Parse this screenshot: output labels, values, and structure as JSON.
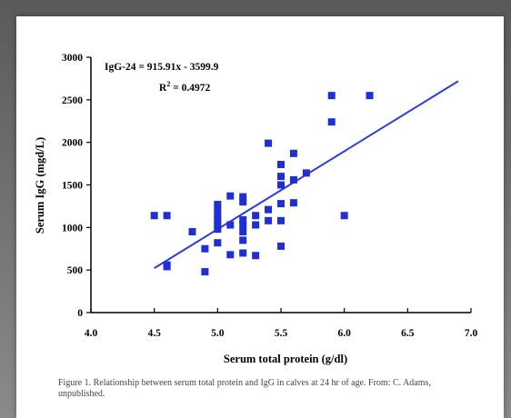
{
  "chart_data": {
    "type": "scatter",
    "xlabel": "Serum total protein (g/dl)",
    "ylabel": "Serum IgG (mgd/L)",
    "xlim": [
      4.0,
      7.0
    ],
    "ylim": [
      0,
      3000
    ],
    "xticks": [
      "4.0",
      "4.5",
      "5.0",
      "5.5",
      "6.0",
      "6.5",
      "7.0"
    ],
    "yticks": [
      "0",
      "500",
      "1000",
      "1500",
      "2000",
      "2500",
      "3000"
    ],
    "xtick_values": [
      4.0,
      4.5,
      5.0,
      5.5,
      6.0,
      6.5,
      7.0
    ],
    "ytick_values": [
      0,
      500,
      1000,
      1500,
      2000,
      2500,
      3000
    ],
    "grid": false,
    "series": [
      {
        "marker_color": "#1f2ed6",
        "points": [
          [
            4.5,
            1140
          ],
          [
            4.6,
            1140
          ],
          [
            4.6,
            540
          ],
          [
            4.6,
            560
          ],
          [
            4.8,
            950
          ],
          [
            4.9,
            480
          ],
          [
            4.9,
            750
          ],
          [
            5.0,
            820
          ],
          [
            5.0,
            980
          ],
          [
            5.0,
            1030
          ],
          [
            5.0,
            1090
          ],
          [
            5.0,
            1140
          ],
          [
            5.0,
            1210
          ],
          [
            5.0,
            1270
          ],
          [
            5.1,
            1030
          ],
          [
            5.1,
            680
          ],
          [
            5.1,
            1370
          ],
          [
            5.2,
            700
          ],
          [
            5.2,
            850
          ],
          [
            5.2,
            950
          ],
          [
            5.2,
            1030
          ],
          [
            5.2,
            1090
          ],
          [
            5.2,
            1300
          ],
          [
            5.2,
            1360
          ],
          [
            5.3,
            670
          ],
          [
            5.3,
            1030
          ],
          [
            5.3,
            1140
          ],
          [
            5.4,
            1080
          ],
          [
            5.4,
            1210
          ],
          [
            5.4,
            1990
          ],
          [
            5.5,
            780
          ],
          [
            5.5,
            1080
          ],
          [
            5.5,
            1280
          ],
          [
            5.5,
            1500
          ],
          [
            5.5,
            1600
          ],
          [
            5.5,
            1740
          ],
          [
            5.6,
            1290
          ],
          [
            5.6,
            1560
          ],
          [
            5.6,
            1870
          ],
          [
            5.7,
            1640
          ],
          [
            5.9,
            2240
          ],
          [
            5.9,
            2550
          ],
          [
            6.0,
            1140
          ],
          [
            6.2,
            2550
          ]
        ]
      }
    ],
    "trendline": {
      "x": [
        4.5,
        6.9
      ],
      "y": [
        521.7,
        2720.0
      ],
      "color": "#2b3fd6"
    },
    "annotations": {
      "equation": "IgG-24 = 915.91x - 3599.9",
      "r2_prefix": "R",
      "r2_sup": "2",
      "r2_value": " = 0.4972"
    }
  },
  "caption": "Figure 1.  Relationship between serum total protein and IgG in calves at 24 hr of age.  From:  C. Adams, unpublished."
}
